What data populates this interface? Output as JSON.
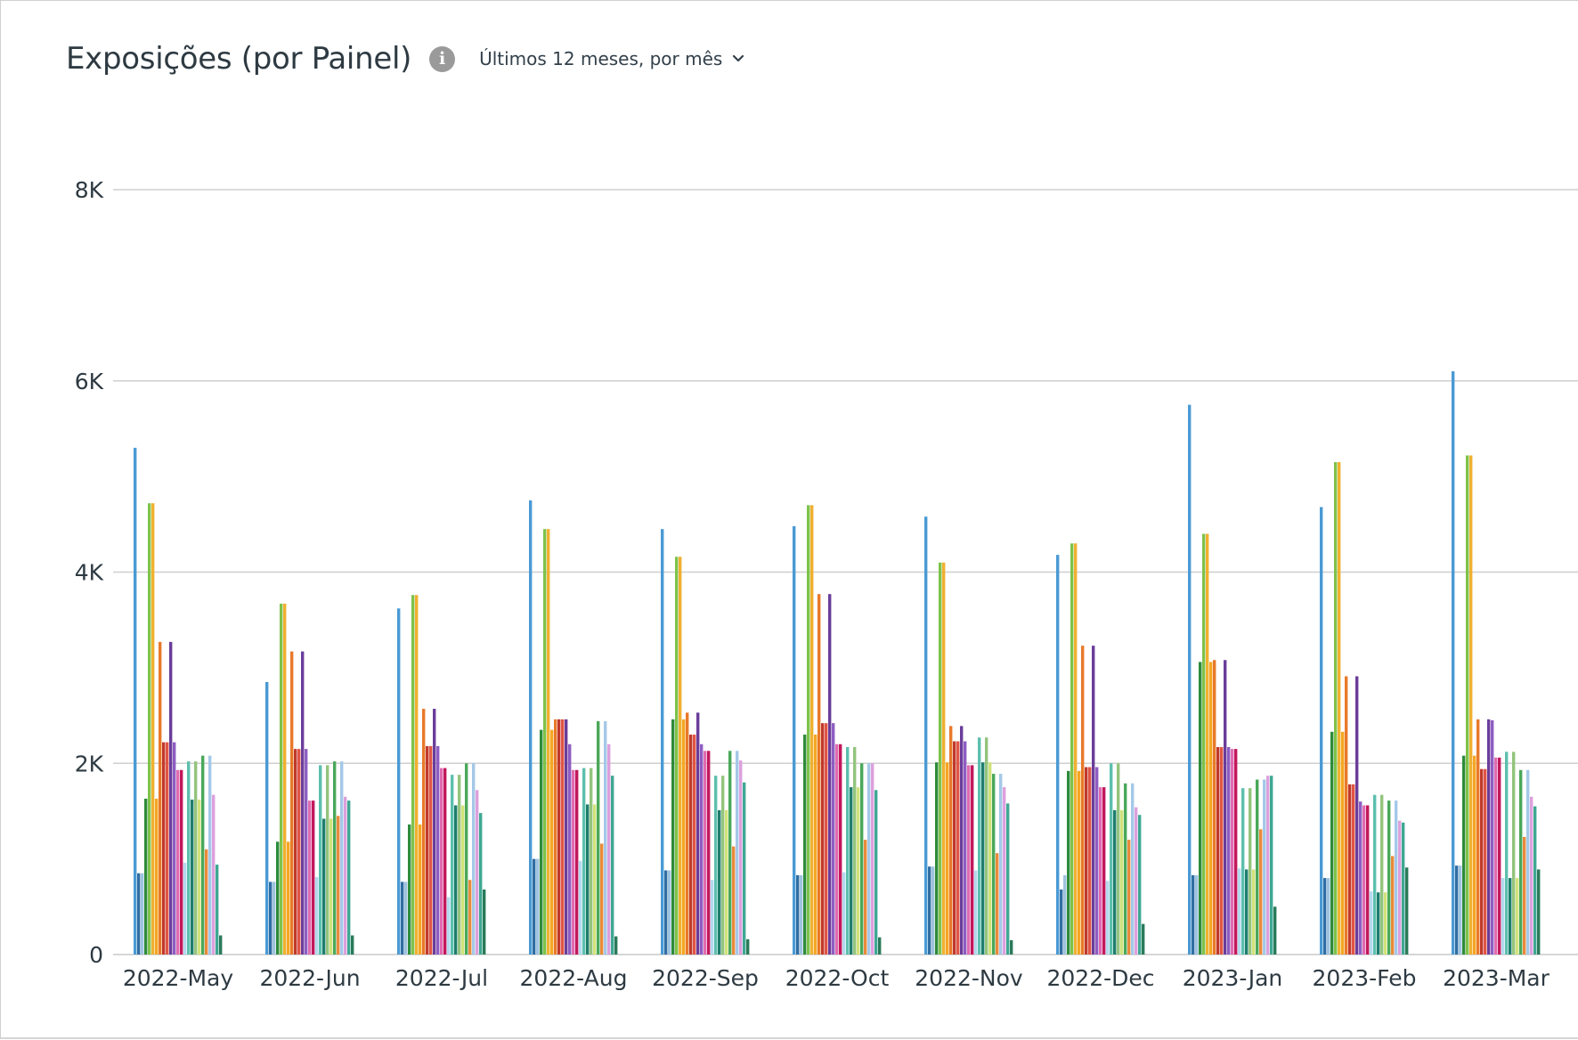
{
  "header": {
    "title": "Exposições (por Painel)",
    "info_icon": "info-icon",
    "range_label": "Últimos 12 meses, por mês",
    "range_icon": "chevron-down-icon"
  },
  "chart_data": {
    "type": "bar",
    "ylim": [
      0,
      8000
    ],
    "yticks": [
      {
        "value": 0,
        "label": "0"
      },
      {
        "value": 2000,
        "label": "2K"
      },
      {
        "value": 4000,
        "label": "4K"
      },
      {
        "value": 6000,
        "label": "6K"
      },
      {
        "value": 8000,
        "label": "8K"
      }
    ],
    "grid": true,
    "categories": [
      "2022-May",
      "2022-Jun",
      "2022-Jul",
      "2022-Aug",
      "2022-Sep",
      "2022-Oct",
      "2022-Nov",
      "2022-Dec",
      "2023-Jan",
      "2023-Feb",
      "2023-Mar"
    ],
    "series_colors": [
      "#4a9ad4",
      "#2f6ea3",
      "#9ec3df",
      "#2e8b3a",
      "#7ec24a",
      "#f0b030",
      "#f5a623",
      "#e8792a",
      "#c0392b",
      "#e05545",
      "#6a3d9a",
      "#8e5cc2",
      "#e06bb0",
      "#c2185b",
      "#b3d9ee",
      "#5dbfae",
      "#1e7d6c",
      "#93c47d",
      "#d1e27a",
      "#4aa85a",
      "#e88a3a",
      "#a4c8e8",
      "#dda0dd",
      "#3fa893",
      "#2a7a5a"
    ],
    "series": [
      {
        "values": [
          5300,
          2850,
          3620,
          4750,
          4450,
          4480,
          4580,
          4180,
          5750,
          4680,
          6100
        ]
      },
      {
        "values": [
          850,
          760,
          760,
          1000,
          880,
          830,
          920,
          680,
          830,
          800,
          930
        ]
      },
      {
        "values": [
          850,
          760,
          760,
          1000,
          880,
          830,
          920,
          830,
          830,
          800,
          930
        ]
      },
      {
        "values": [
          1630,
          1180,
          1360,
          2350,
          2460,
          2300,
          2010,
          1920,
          3060,
          2330,
          2080
        ]
      },
      {
        "values": [
          4720,
          3670,
          3760,
          4450,
          4160,
          4700,
          4100,
          4300,
          4400,
          5150,
          5220
        ]
      },
      {
        "values": [
          4720,
          3670,
          3760,
          4450,
          4160,
          4700,
          4100,
          4300,
          4400,
          5150,
          5220
        ]
      },
      {
        "values": [
          1630,
          1180,
          1360,
          2350,
          2460,
          2300,
          2010,
          1920,
          3060,
          2330,
          2080
        ]
      },
      {
        "values": [
          3270,
          3170,
          2570,
          2460,
          2530,
          3770,
          2390,
          3230,
          3080,
          2910,
          2460
        ]
      },
      {
        "values": [
          2220,
          2150,
          2180,
          2460,
          2300,
          2420,
          2230,
          1960,
          2170,
          1780,
          1940
        ]
      },
      {
        "values": [
          2220,
          2150,
          2180,
          2460,
          2300,
          2420,
          2230,
          1960,
          2170,
          1780,
          1940
        ]
      },
      {
        "values": [
          3270,
          3170,
          2570,
          2460,
          2530,
          3770,
          2390,
          3230,
          3080,
          2910,
          2460
        ]
      },
      {
        "values": [
          2220,
          2150,
          2180,
          2200,
          2200,
          2420,
          2230,
          1960,
          2170,
          1600,
          2450
        ]
      },
      {
        "values": [
          1930,
          1610,
          1950,
          1930,
          2130,
          2200,
          1980,
          1750,
          2150,
          1560,
          2060
        ]
      },
      {
        "values": [
          1930,
          1610,
          1950,
          1930,
          2130,
          2200,
          1980,
          1750,
          2150,
          1560,
          2060
        ]
      },
      {
        "values": [
          960,
          810,
          600,
          980,
          780,
          860,
          880,
          770,
          900,
          660,
          800
        ]
      },
      {
        "values": [
          2020,
          1980,
          1880,
          1950,
          1870,
          2170,
          2270,
          2000,
          1740,
          1670,
          2120
        ]
      },
      {
        "values": [
          1620,
          1420,
          1560,
          1570,
          1510,
          1750,
          2010,
          1510,
          890,
          650,
          800
        ]
      },
      {
        "values": [
          2020,
          1980,
          1880,
          1950,
          1870,
          2170,
          2270,
          2000,
          1740,
          1670,
          2120
        ]
      },
      {
        "values": [
          1620,
          1420,
          1560,
          1570,
          1510,
          1750,
          2010,
          1510,
          890,
          650,
          800
        ]
      },
      {
        "values": [
          2080,
          2020,
          2000,
          2440,
          2130,
          2000,
          1890,
          1790,
          1830,
          1610,
          1930
        ]
      },
      {
        "values": [
          1100,
          1450,
          780,
          1160,
          1130,
          1200,
          1060,
          1200,
          1310,
          1030,
          1230
        ]
      },
      {
        "values": [
          2080,
          2020,
          2000,
          2440,
          2130,
          2000,
          1890,
          1790,
          1830,
          1610,
          1930
        ]
      },
      {
        "values": [
          1670,
          1650,
          1720,
          2200,
          2030,
          2000,
          1750,
          1540,
          1870,
          1400,
          1650
        ]
      },
      {
        "values": [
          940,
          1610,
          1480,
          1870,
          1800,
          1720,
          1580,
          1460,
          1870,
          1380,
          1550
        ]
      },
      {
        "values": [
          200,
          200,
          680,
          190,
          160,
          180,
          150,
          320,
          500,
          910,
          890
        ]
      }
    ]
  }
}
